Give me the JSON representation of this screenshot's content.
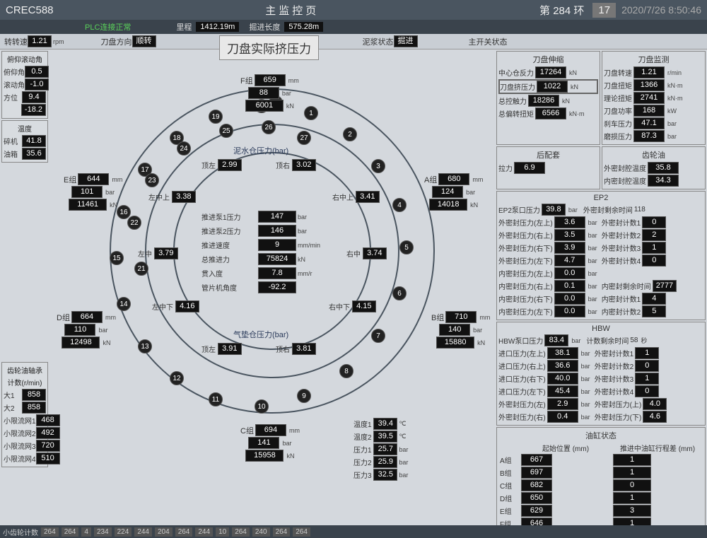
{
  "header": {
    "id": "CREC588",
    "title": "主监控页",
    "ring_lbl": "第",
    "ring": "284",
    "ring_suf": "环",
    "count": "17",
    "datetime": "2020/7/26 8:50:46"
  },
  "sub": {
    "plc": "PLC连接正常",
    "mileage_k": "里程",
    "mileage": "1412.19m",
    "exclen_k": "掘进长度",
    "exclen": "575.28m"
  },
  "row3": {
    "rot_k": "转转速",
    "rot": "1.21",
    "rot_u": "rpm",
    "dir_k": "刀盘方向",
    "dir": "顺转",
    "mud_k": "泥浆状态",
    "mud": "掘进",
    "sw_k": "主开关状态"
  },
  "callout": "刀盘实际挤压力",
  "left": {
    "tilt_t": "俯仰滚动角",
    "tilt": [
      {
        "k": "俯仰角",
        "v": "0.5"
      },
      {
        "k": "滚动角",
        "v": "-1.0"
      },
      {
        "k": "方位",
        "v": "9.4"
      },
      {
        "k": "",
        "v": "-18.2"
      }
    ],
    "temp_t": "温度",
    "temp": [
      {
        "k": "碎机",
        "v": "41.8"
      },
      {
        "k": "油箱",
        "v": "35.6"
      }
    ],
    "bear_t": "齿轮油轴承",
    "bear_t2": "计数(r/min)",
    "bear": [
      {
        "k": "大1",
        "v": "858"
      },
      {
        "k": "大2",
        "v": "858"
      },
      {
        "k": "小限流网1",
        "v": "468"
      },
      {
        "k": "小限流网2",
        "v": "492"
      },
      {
        "k": "小限流网3",
        "v": "720"
      },
      {
        "k": "小限流网4",
        "v": "510"
      }
    ]
  },
  "center": {
    "groups": {
      "F": {
        "lbl": "F组",
        "mm": "659",
        "bar": "88",
        "kn": "6001"
      },
      "E": {
        "lbl": "E组",
        "mm": "644",
        "bar": "101",
        "kn": "11461"
      },
      "A": {
        "lbl": "A组",
        "mm": "680",
        "bar": "124",
        "kn": "14018"
      },
      "D": {
        "lbl": "D组",
        "mm": "664",
        "bar": "110",
        "kn": "12498"
      },
      "B": {
        "lbl": "B组",
        "mm": "710",
        "bar": "140",
        "kn": "15880"
      },
      "C": {
        "lbl": "C组",
        "mm": "694",
        "bar": "141",
        "kn": "15958"
      }
    },
    "mud_t": "泥水仓压力(bar)",
    "mud": {
      "tl_k": "顶左",
      "tl": "2.99",
      "tr_k": "顶右",
      "tr": "3.02",
      "ml_k": "左中上",
      "ml": "3.38",
      "mr_k": "右中上",
      "mr": "3.41",
      "cl_k": "左中",
      "cl": "3.79",
      "cr_k": "右中",
      "cr": "3.74",
      "bl_k": "左中下",
      "bl": "4.16",
      "br_k": "右中下",
      "br": "4.15"
    },
    "air_t": "气垫仓压力(bar)",
    "air": {
      "tl_k": "顶左",
      "tl": "3.91",
      "tr_k": "顶右",
      "tr": "3.81"
    },
    "core": [
      {
        "k": "推进泵1压力",
        "v": "147",
        "u": "bar"
      },
      {
        "k": "推进泵2压力",
        "v": "146",
        "u": "bar"
      },
      {
        "k": "推进速度",
        "v": "9",
        "u": "mm/min"
      },
      {
        "k": "总推进力",
        "v": "75824",
        "u": "kN"
      },
      {
        "k": "贯入度",
        "v": "7.8",
        "u": "mm/r"
      },
      {
        "k": "管片机角度",
        "v": "-92.2",
        "u": ""
      }
    ],
    "bot": [
      {
        "k": "温度1",
        "v": "39.4",
        "u": "℃"
      },
      {
        "k": "温度2",
        "v": "39.5",
        "u": "℃"
      },
      {
        "k": "压力1",
        "v": "25.7",
        "u": "bar"
      },
      {
        "k": "压力2",
        "v": "25.9",
        "u": "bar"
      },
      {
        "k": "压力3",
        "v": "32.5",
        "u": "bar"
      }
    ]
  },
  "right": {
    "ext": {
      "t": "刀盘伸缩",
      "rows": [
        {
          "k": "中心仓反力",
          "v": "17264",
          "u": "kN"
        },
        {
          "k": "刀盘挤压力",
          "v": "1022",
          "u": "kN",
          "hl": true
        },
        {
          "k": "总控触力",
          "v": "18286",
          "u": "kN"
        },
        {
          "k": "总偏转扭矩",
          "v": "6566",
          "u": "kN·m"
        }
      ]
    },
    "mon": {
      "t": "刀盘监测",
      "rows": [
        {
          "k": "刀盘转速",
          "v": "1.21",
          "u": "r/min"
        },
        {
          "k": "刀盘扭矩",
          "v": "1366",
          "u": "kN·m"
        },
        {
          "k": "理论扭矩",
          "v": "2741",
          "u": "kN·m"
        },
        {
          "k": "刀盘功率",
          "v": "168",
          "u": "kW"
        },
        {
          "k": "刹车压力",
          "v": "47.1",
          "u": "bar"
        },
        {
          "k": "磨损压力",
          "v": "87.3",
          "u": "bar"
        }
      ]
    },
    "rear": {
      "t": "后配套",
      "rows": [
        {
          "k": "拉力",
          "v": "6.9",
          "u": ""
        }
      ]
    },
    "gear": {
      "t": "齿轮油",
      "rows": [
        {
          "k": "外密封腔温度",
          "v": "35.8",
          "u": ""
        },
        {
          "k": "内密封腔温度",
          "v": "34.3",
          "u": ""
        }
      ]
    },
    "ep2": {
      "t": "EP2",
      "pump_k": "EP2泵口压力",
      "pump": "39.8",
      "pump_u": "bar",
      "rem_k": "外密封剩余时间",
      "rem": "118",
      "rows": [
        {
          "k": "外密封压力(左上)",
          "v": "3.6",
          "u": "bar",
          "ck": "外密封计数1",
          "cv": "0"
        },
        {
          "k": "外密封压力(右上)",
          "v": "3.5",
          "u": "bar",
          "ck": "外密封计数2",
          "cv": "2"
        },
        {
          "k": "外密封压力(右下)",
          "v": "3.9",
          "u": "bar",
          "ck": "外密封计数3",
          "cv": "1"
        },
        {
          "k": "外密封压力(左下)",
          "v": "4.7",
          "u": "bar",
          "ck": "外密封计数4",
          "cv": "0"
        },
        {
          "k": "内密封压力(左上)",
          "v": "0.0",
          "u": "bar",
          "ck": "",
          "cv": ""
        },
        {
          "k": "内密封压力(右上)",
          "v": "0.1",
          "u": "bar",
          "ck": "内密封剩余时间",
          "cv": "2777"
        },
        {
          "k": "内密封压力(右下)",
          "v": "0.0",
          "u": "bar",
          "ck": "内密封计数1",
          "cv": "4"
        },
        {
          "k": "内密封压力(左下)",
          "v": "0.0",
          "u": "bar",
          "ck": "内密封计数2",
          "cv": "5"
        }
      ]
    },
    "hbw": {
      "t": "HBW",
      "pump_k": "HBW泵口压力",
      "pump": "83.4",
      "pump_u": "bar",
      "rem_k": "计数剩余时间",
      "rem": "58",
      "rem_u": "秒",
      "rows": [
        {
          "k": "进口压力(左上)",
          "v": "38.1",
          "u": "bar",
          "ck": "外密封计数1",
          "cv": "1"
        },
        {
          "k": "进口压力(右上)",
          "v": "36.6",
          "u": "bar",
          "ck": "外密封计数2",
          "cv": "0"
        },
        {
          "k": "进口压力(右下)",
          "v": "40.0",
          "u": "bar",
          "ck": "外密封计数3",
          "cv": "1"
        },
        {
          "k": "进口压力(左下)",
          "v": "45.4",
          "u": "bar",
          "ck": "外密封计数4",
          "cv": "0"
        },
        {
          "k": "外密封压力(左)",
          "v": "2.9",
          "u": "bar",
          "ck": "外密封压力(上)",
          "cv": "4.0"
        },
        {
          "k": "外密封压力(右)",
          "v": "0.4",
          "u": "bar",
          "ck": "外密封压力(下)",
          "cv": "4.6"
        }
      ]
    },
    "cyl": {
      "t": "油缸状态",
      "h1": "起始位置 (mm)",
      "h2": "推进中油缸行程差 (mm)",
      "rows": [
        {
          "g": "A组",
          "p": "667",
          "d": "1"
        },
        {
          "g": "B组",
          "p": "697",
          "d": "1"
        },
        {
          "g": "C组",
          "p": "682",
          "d": "0"
        },
        {
          "g": "D组",
          "p": "650",
          "d": "1"
        },
        {
          "g": "E组",
          "p": "629",
          "d": "3"
        },
        {
          "g": "F组",
          "p": "646",
          "d": "1"
        }
      ]
    }
  },
  "btm": {
    "lbl": "小齿轮计数",
    "vals": [
      "264",
      "264",
      "4",
      "234",
      "224",
      "244",
      "204",
      "264",
      "244",
      "10",
      "264",
      "240",
      "264",
      "264"
    ]
  }
}
